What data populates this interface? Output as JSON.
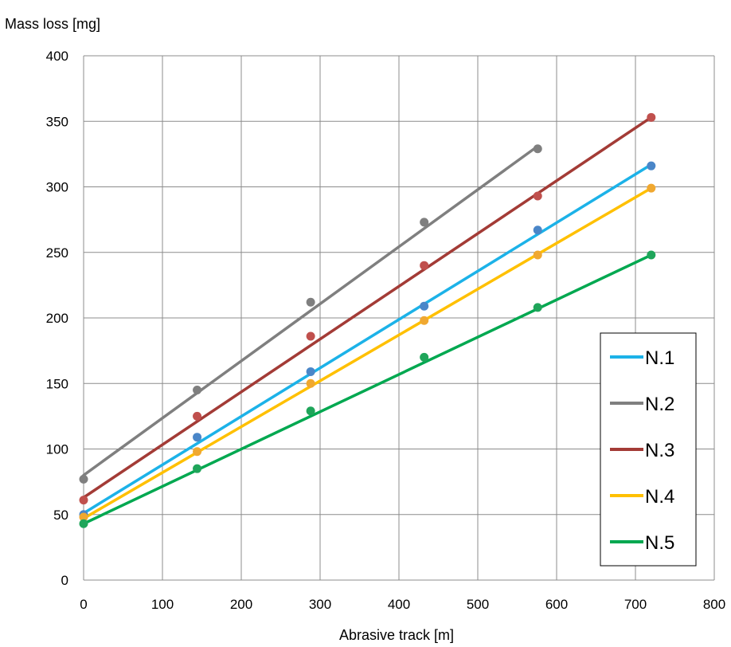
{
  "chart_data": {
    "type": "scatter",
    "title": "",
    "xlabel": "Abrasive track [m]",
    "ylabel": "Mass loss [mg]",
    "xlim": [
      0,
      800
    ],
    "ylim": [
      0,
      400
    ],
    "xticks": [
      0,
      100,
      200,
      300,
      400,
      500,
      600,
      700,
      800
    ],
    "yticks": [
      0,
      50,
      100,
      150,
      200,
      250,
      300,
      350,
      400
    ],
    "grid": true,
    "legend_position": "bottom-right",
    "trendlines": "linear",
    "series": [
      {
        "name": "N.1",
        "color": "#1CB2E8",
        "marker_color": "#4A86C8",
        "x": [
          0,
          144,
          288,
          432,
          576,
          720
        ],
        "y": [
          50,
          109,
          159,
          209,
          267,
          316
        ],
        "fit": {
          "x": [
            0,
            720
          ],
          "y": [
            51,
            317
          ]
        }
      },
      {
        "name": "N.2",
        "color": "#7F7F7F",
        "marker_color": "#7F7F7F",
        "x": [
          0,
          144,
          288,
          432,
          576
        ],
        "y": [
          77,
          145,
          212,
          273,
          329
        ],
        "fit": {
          "x": [
            0,
            576
          ],
          "y": [
            80,
            331
          ]
        }
      },
      {
        "name": "N.3",
        "color": "#A33B36",
        "marker_color": "#C0504D",
        "x": [
          0,
          144,
          288,
          432,
          576,
          720
        ],
        "y": [
          61,
          125,
          186,
          240,
          293,
          353
        ],
        "fit": {
          "x": [
            0,
            720
          ],
          "y": [
            63,
            353
          ]
        }
      },
      {
        "name": "N.4",
        "color": "#FFC000",
        "marker_color": "#F0A830",
        "x": [
          0,
          144,
          288,
          432,
          576,
          720
        ],
        "y": [
          48,
          98,
          150,
          198,
          248,
          299
        ],
        "fit": {
          "x": [
            0,
            720
          ],
          "y": [
            47,
            299
          ]
        }
      },
      {
        "name": "N.5",
        "color": "#00A850",
        "marker_color": "#1FA55A",
        "x": [
          0,
          144,
          288,
          432,
          576,
          720
        ],
        "y": [
          43,
          85,
          129,
          170,
          208,
          248
        ],
        "fit": {
          "x": [
            0,
            720
          ],
          "y": [
            43,
            248
          ]
        }
      }
    ]
  }
}
